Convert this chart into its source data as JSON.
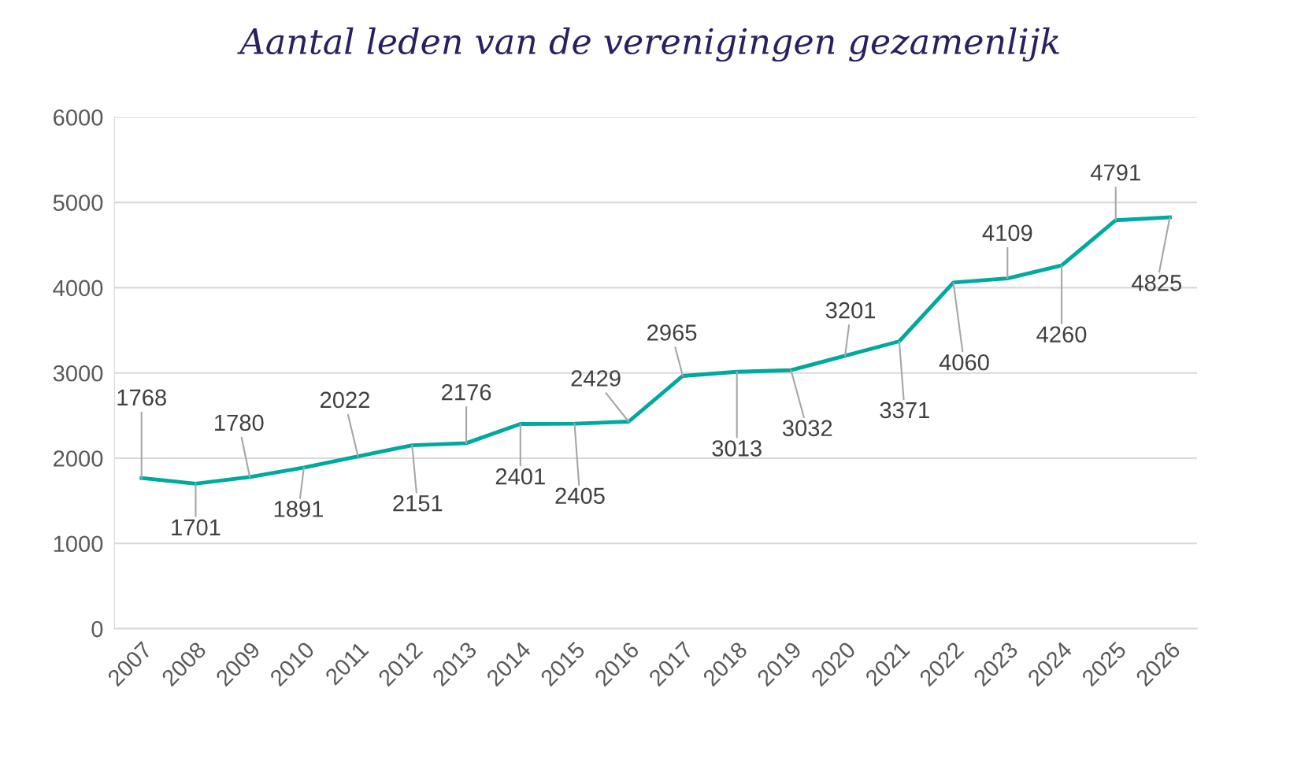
{
  "chart_data": {
    "type": "line",
    "title": "Aantal leden van de verenigingen gezamenlijk",
    "categories": [
      "2007",
      "2008",
      "2009",
      "2010",
      "2011",
      "2012",
      "2013",
      "2014",
      "2015",
      "2016",
      "2017",
      "2018",
      "2019",
      "2020",
      "2021",
      "2022",
      "2023",
      "2024",
      "2025",
      "2026"
    ],
    "series": [
      {
        "color": "#00a99d",
        "values": [
          1768,
          1701,
          1780,
          1891,
          2022,
          2151,
          2176,
          2401,
          2405,
          2429,
          2965,
          3013,
          3032,
          3201,
          3371,
          4060,
          4109,
          4260,
          4791,
          4825
        ]
      }
    ],
    "ylim": [
      0,
      6000
    ],
    "yticks": [
      0,
      1000,
      2000,
      3000,
      4000,
      5000,
      6000
    ],
    "grid": "y",
    "legend": false,
    "marker": "none",
    "line_style": "solid",
    "data_labels": true
  }
}
